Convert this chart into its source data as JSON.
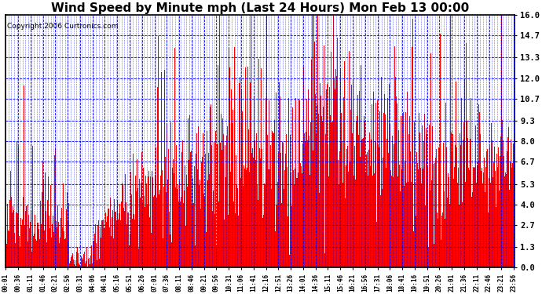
{
  "title": "Wind Speed by Minute mph (Last 24 Hours) Mon Feb 13 00:00",
  "copyright": "Copyright 2006 Curtronics.com",
  "yticks": [
    0.0,
    1.3,
    2.7,
    4.0,
    5.3,
    6.7,
    8.0,
    9.3,
    10.7,
    12.0,
    13.3,
    14.7,
    16.0
  ],
  "ylim": [
    0.0,
    16.0
  ],
  "xtick_labels": [
    "00:01",
    "00:36",
    "01:11",
    "01:46",
    "02:21",
    "02:56",
    "03:31",
    "04:06",
    "04:41",
    "05:16",
    "05:51",
    "06:26",
    "07:01",
    "07:36",
    "08:11",
    "08:46",
    "09:21",
    "09:56",
    "10:31",
    "11:06",
    "11:41",
    "12:16",
    "12:51",
    "13:26",
    "14:01",
    "14:36",
    "15:11",
    "15:46",
    "16:21",
    "16:56",
    "17:31",
    "18:06",
    "18:41",
    "19:16",
    "19:51",
    "20:26",
    "21:01",
    "21:36",
    "22:11",
    "22:46",
    "23:21",
    "23:56"
  ],
  "bar_color": "#FF0000",
  "background_color": "#FFFFFF",
  "grid_color": "#0000FF",
  "title_fontsize": 11,
  "copyright_fontsize": 6.5,
  "plot_area_bg": "#FFFFFF"
}
